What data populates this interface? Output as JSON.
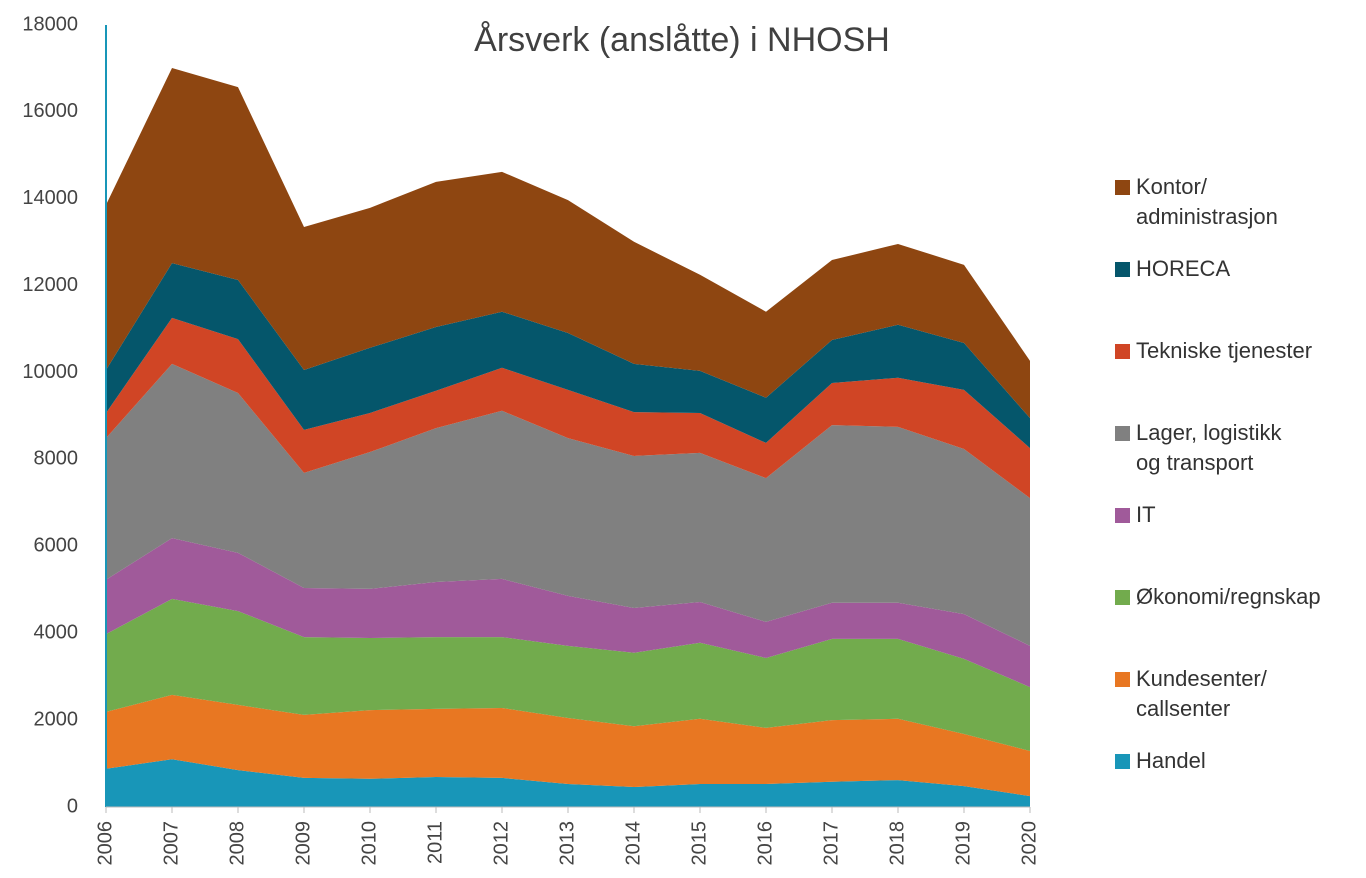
{
  "chart_data": {
    "type": "stacked_area",
    "title": "Årsverk (anslåtte) i NHOSH",
    "x": [
      2006,
      2007,
      2008,
      2009,
      2010,
      2011,
      2012,
      2013,
      2014,
      2015,
      2016,
      2017,
      2018,
      2019,
      2020
    ],
    "xlim": [
      2006,
      2020
    ],
    "ylim": [
      0,
      18000
    ],
    "yticks": [
      0,
      2000,
      4000,
      6000,
      8000,
      10000,
      12000,
      14000,
      16000,
      18000
    ],
    "series": [
      {
        "name": "Handel",
        "color": "#1896b8",
        "values": [
          880,
          1100,
          850,
          670,
          650,
          690,
          670,
          530,
          460,
          530,
          530,
          580,
          620,
          480,
          250
        ]
      },
      {
        "name": "Kundesenter/\ncallsenter",
        "color": "#e87722",
        "values": [
          1310,
          1480,
          1500,
          1450,
          1580,
          1570,
          1610,
          1520,
          1400,
          1500,
          1290,
          1420,
          1410,
          1200,
          1040
        ]
      },
      {
        "name": "Økonomi/regnskap",
        "color": "#72ab4d",
        "values": [
          1790,
          2210,
          2160,
          1790,
          1660,
          1650,
          1630,
          1660,
          1690,
          1750,
          1610,
          1870,
          1840,
          1730,
          1470
        ]
      },
      {
        "name": "IT",
        "color": "#a05a9a",
        "values": [
          1250,
          1400,
          1340,
          1130,
          1130,
          1270,
          1340,
          1150,
          1030,
          940,
          830,
          830,
          830,
          1030,
          950
        ]
      },
      {
        "name": "Lager, logistikk\nog transport",
        "color": "#808080",
        "values": [
          3260,
          4010,
          3680,
          2650,
          3150,
          3540,
          3870,
          3630,
          3500,
          3430,
          3310,
          4090,
          4050,
          3800,
          3400
        ]
      },
      {
        "name": "Tekniske tjenester",
        "color": "#d04525",
        "values": [
          580,
          1060,
          1240,
          990,
          900,
          860,
          990,
          1110,
          1010,
          920,
          810,
          970,
          1130,
          1360,
          1150
        ]
      },
      {
        "name": "HORECA",
        "color": "#05566b",
        "values": [
          990,
          1260,
          1360,
          1380,
          1500,
          1470,
          1290,
          1310,
          1110,
          970,
          1040,
          990,
          1220,
          1080,
          690
        ]
      },
      {
        "name": "Kontor/\nadministrasjon",
        "color": "#8e4611",
        "values": [
          3800,
          4490,
          4440,
          3290,
          3220,
          3340,
          3220,
          3060,
          2810,
          2210,
          1980,
          1840,
          1860,
          1800,
          1320
        ]
      }
    ]
  }
}
